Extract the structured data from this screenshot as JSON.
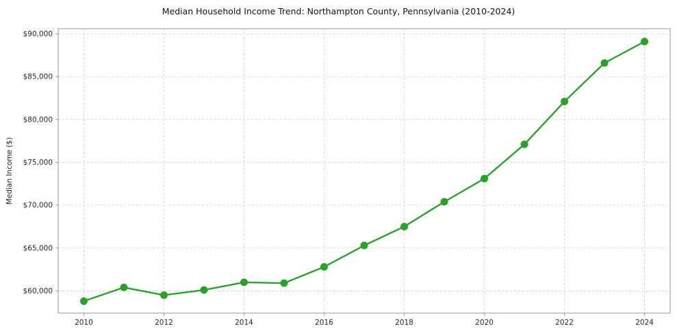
{
  "chart_data": {
    "type": "line",
    "title": "Median Household Income Trend: Northampton County, Pennsylvania (2010-2024)",
    "xlabel": "",
    "ylabel": "Median Income ($)",
    "x": [
      2010,
      2011,
      2012,
      2013,
      2014,
      2015,
      2016,
      2017,
      2018,
      2019,
      2020,
      2021,
      2022,
      2023,
      2024
    ],
    "values": [
      58800,
      60400,
      59500,
      60100,
      61000,
      60900,
      62800,
      65300,
      67500,
      70400,
      73100,
      77100,
      82100,
      86600,
      89100
    ],
    "xlim": [
      2009.36,
      2024.64
    ],
    "ylim": [
      57400,
      90600
    ],
    "xticks": [
      2010,
      2012,
      2014,
      2016,
      2018,
      2020,
      2022,
      2024
    ],
    "xtick_labels": [
      "2010",
      "2012",
      "2014",
      "2016",
      "2018",
      "2020",
      "2022",
      "2024"
    ],
    "yticks": [
      60000,
      65000,
      70000,
      75000,
      80000,
      85000,
      90000
    ],
    "ytick_labels": [
      "$60,000",
      "$65,000",
      "$70,000",
      "$75,000",
      "$80,000",
      "$85,000",
      "$90,000"
    ],
    "grid": "dashed",
    "legend": "none",
    "line_color": "#2ca02c",
    "marker": "circle",
    "grid_color": "#cccccc",
    "axis_color": "#9a9a9a",
    "tick_label_color": "#262626"
  }
}
